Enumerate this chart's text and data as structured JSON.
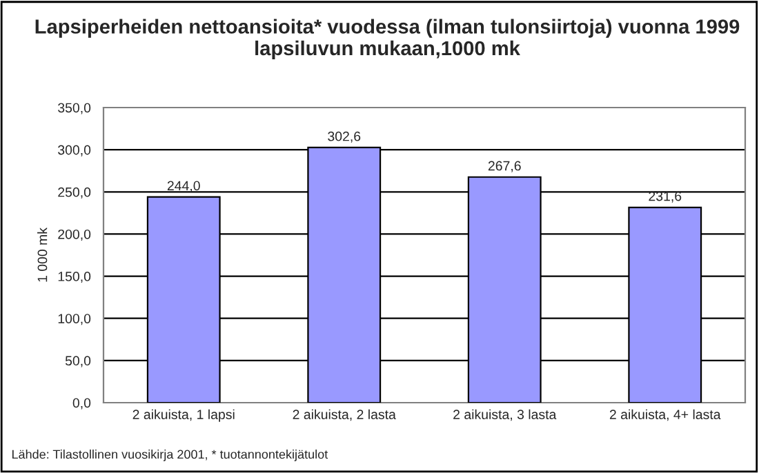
{
  "chart_data": {
    "type": "bar",
    "title": "Lapsiperheiden nettoansioita* vuodessa (ilman tulonsiirtoja) vuonna 1999 lapsiluvun mukaan,1000 mk",
    "ylabel": "1 000 mk",
    "categories": [
      "2 aikuista, 1 lapsi",
      "2 aikuista, 2 lasta",
      "2 aikuista, 3 lasta",
      "2 aikuista, 4+ lasta"
    ],
    "values": [
      244.0,
      302.6,
      267.6,
      231.6
    ],
    "value_labels": [
      "244,0",
      "302,6",
      "267,6",
      "231,6"
    ],
    "color": "#9999ff",
    "ylim": [
      0,
      350
    ],
    "yticks": [
      {
        "value": 0,
        "label": "0,0"
      },
      {
        "value": 50,
        "label": "50,0"
      },
      {
        "value": 100,
        "label": "100,0"
      },
      {
        "value": 150,
        "label": "150,0"
      },
      {
        "value": 200,
        "label": "200,0"
      },
      {
        "value": 250,
        "label": "250,0"
      },
      {
        "value": 300,
        "label": "300,0"
      },
      {
        "value": 350,
        "label": "350,0"
      }
    ],
    "grid": "y",
    "annotations": [
      "Lähde: Tilastollinen vuosikirja 2001, * tuotannontekijätulot"
    ]
  }
}
